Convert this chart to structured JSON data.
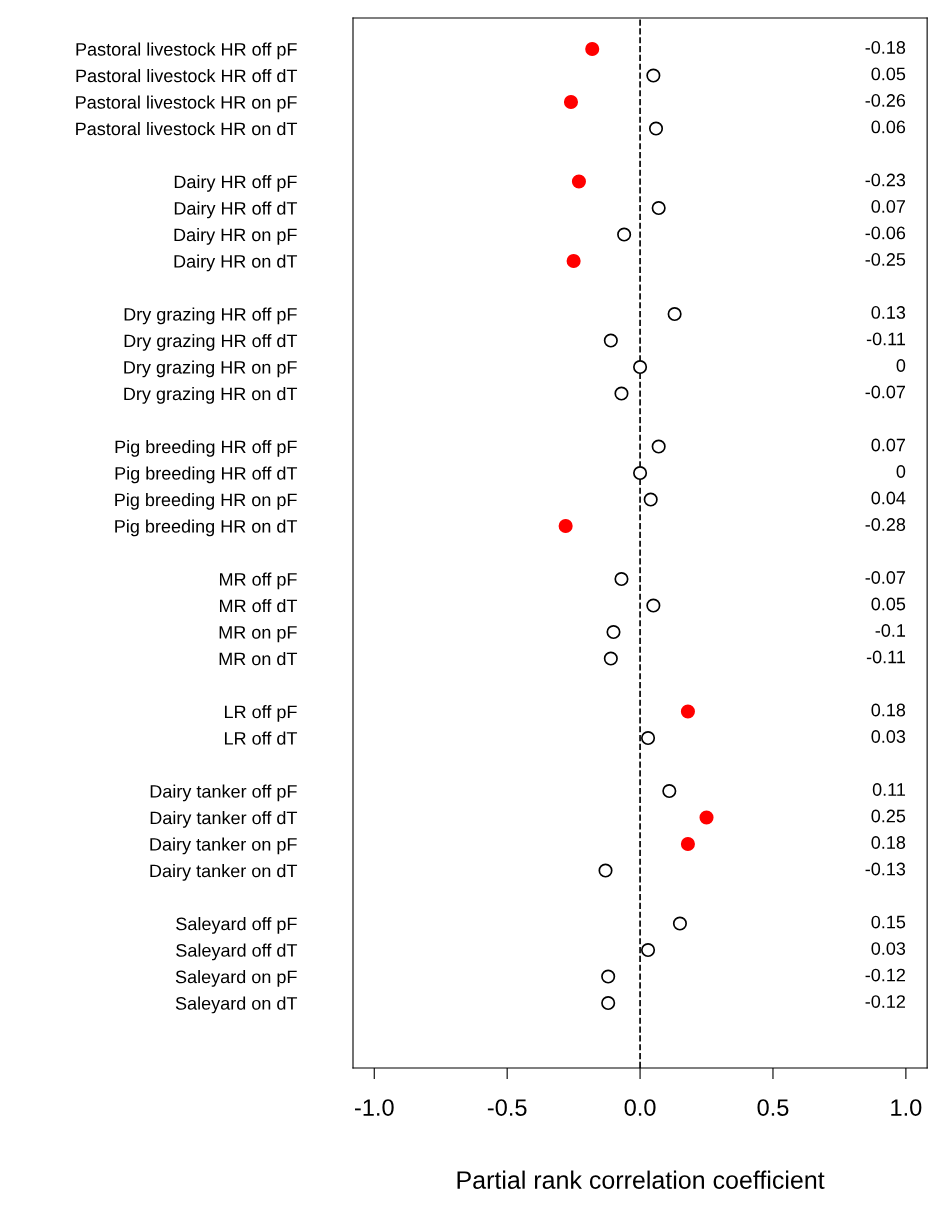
{
  "chart_data": {
    "type": "scatter",
    "xlabel": "Partial rank correlation coefficient",
    "categories": [
      "Pastoral livestock HR off pF",
      "Pastoral livestock HR off dT",
      "Pastoral livestock HR on pF",
      "Pastoral livestock HR on dT",
      null,
      "Dairy HR off pF",
      "Dairy HR off dT",
      "Dairy HR on pF",
      "Dairy HR on dT",
      null,
      "Dry grazing HR off pF",
      "Dry grazing HR off dT",
      "Dry grazing HR on pF",
      "Dry grazing HR on dT",
      null,
      "Pig breeding HR off pF",
      "Pig breeding HR off dT",
      "Pig breeding HR on pF",
      "Pig breeding HR on dT",
      null,
      "MR off pF",
      "MR off dT",
      "MR on pF",
      "MR on dT",
      null,
      "LR off pF",
      "LR off dT",
      null,
      "Dairy tanker off pF",
      "Dairy tanker off dT",
      "Dairy tanker on pF",
      "Dairy tanker on dT",
      null,
      "Saleyard off pF",
      "Saleyard off dT",
      "Saleyard on pF",
      "Saleyard on dT"
    ],
    "series": [
      {
        "color": "#ff0000",
        "values": [
          -0.18,
          null,
          -0.26,
          null,
          null,
          -0.23,
          null,
          null,
          -0.25,
          null,
          null,
          null,
          null,
          null,
          null,
          null,
          null,
          null,
          -0.28,
          null,
          null,
          null,
          null,
          null,
          null,
          0.18,
          null,
          null,
          null,
          0.25,
          0.18,
          null,
          null,
          null,
          null,
          null,
          null
        ]
      },
      {
        "color": "#ffffff",
        "values": [
          null,
          0.05,
          null,
          0.06,
          null,
          null,
          0.07,
          -0.06,
          null,
          null,
          0.13,
          -0.11,
          0,
          -0.07,
          null,
          0.07,
          0,
          0.04,
          null,
          null,
          -0.07,
          0.05,
          -0.1,
          -0.11,
          null,
          null,
          0.03,
          null,
          0.11,
          null,
          null,
          -0.13,
          null,
          0.15,
          0.03,
          -0.12,
          -0.12
        ]
      }
    ],
    "annotations": [
      "-0.18",
      "0.05",
      "-0.26",
      "0.06",
      "-0.23",
      "0.07",
      "-0.06",
      "-0.25",
      "0.13",
      "-0.11",
      "0",
      "-0.07",
      "0.07",
      "0",
      "0.04",
      "-0.28",
      "-0.07",
      "0.05",
      "-0.1",
      "-0.11",
      "0.18",
      "0.03",
      "0.11",
      "0.25",
      "0.18",
      "-0.13",
      "0.15",
      "0.03",
      "-0.12",
      "-0.12"
    ],
    "orientation": "horizontal",
    "marker": "circle",
    "xlim": [
      -1.08,
      1.08
    ],
    "xticks": [
      {
        "value": -1.0,
        "label": "-1.0"
      },
      {
        "value": -0.5,
        "label": "-0.5"
      },
      {
        "value": 0.0,
        "label": "0.0"
      },
      {
        "value": 0.5,
        "label": "0.5"
      },
      {
        "value": 1.0,
        "label": "1.0"
      }
    ],
    "ref_lines": [
      {
        "axis": "x",
        "value": 0,
        "line_style": "dashed",
        "color": "#000000"
      }
    ],
    "grid": false,
    "legend": false
  }
}
